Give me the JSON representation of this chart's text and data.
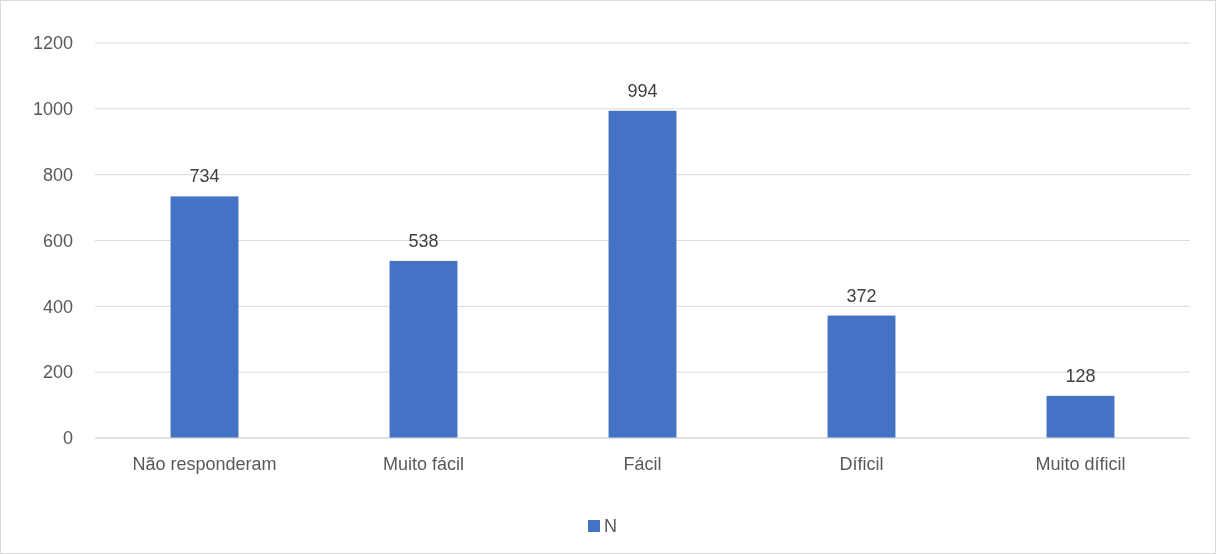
{
  "chart_data": {
    "type": "bar",
    "categories": [
      "Não responderam",
      "Muito fácil",
      "Fácil",
      "Díficil",
      "Muito díficil"
    ],
    "series": [
      {
        "name": "N",
        "color": "#4472c4",
        "values": [
          734,
          538,
          994,
          372,
          128
        ]
      }
    ],
    "ylim": [
      0,
      1200
    ],
    "yticks": [
      0,
      200,
      400,
      600,
      800,
      1000,
      1200
    ],
    "grid": "y",
    "data_labels": true,
    "legend": "bottom"
  }
}
